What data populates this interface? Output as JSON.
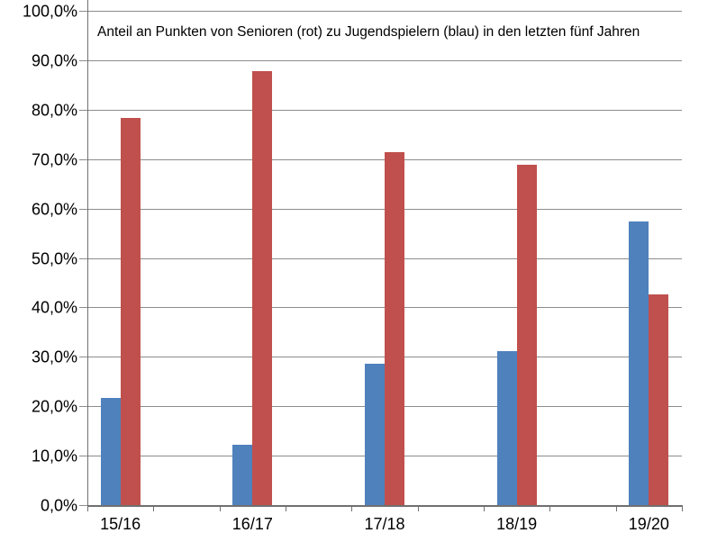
{
  "chart_data": {
    "type": "bar",
    "title": "Anteil an Punkten von Senioren (rot) zu Jugendspielern (blau) in den letzten fünf Jahren",
    "categories": [
      "15/16",
      "16/17",
      "17/18",
      "18/19",
      "19/20"
    ],
    "series": [
      {
        "name": "Jugendspieler (blau)",
        "color": "#4F81BD",
        "values": [
          21.7,
          12.2,
          28.6,
          31.1,
          57.4
        ]
      },
      {
        "name": "Senioren (rot)",
        "color": "#C0504D",
        "values": [
          78.3,
          87.8,
          71.4,
          68.9,
          42.6
        ]
      }
    ],
    "xlabel": "",
    "ylabel": "",
    "ylim": [
      0,
      100
    ],
    "ytick_step": 10,
    "ytick_labels": [
      "0,0%",
      "10,0%",
      "20,0%",
      "30,0%",
      "40,0%",
      "50,0%",
      "60,0%",
      "70,0%",
      "80,0%",
      "90,0%",
      "100,0%"
    ],
    "grid": true,
    "legend": "none",
    "colors": {
      "grid": "#8C8C8C",
      "axis": "#707070",
      "text": "#000000",
      "background": "#FFFFFF"
    }
  }
}
